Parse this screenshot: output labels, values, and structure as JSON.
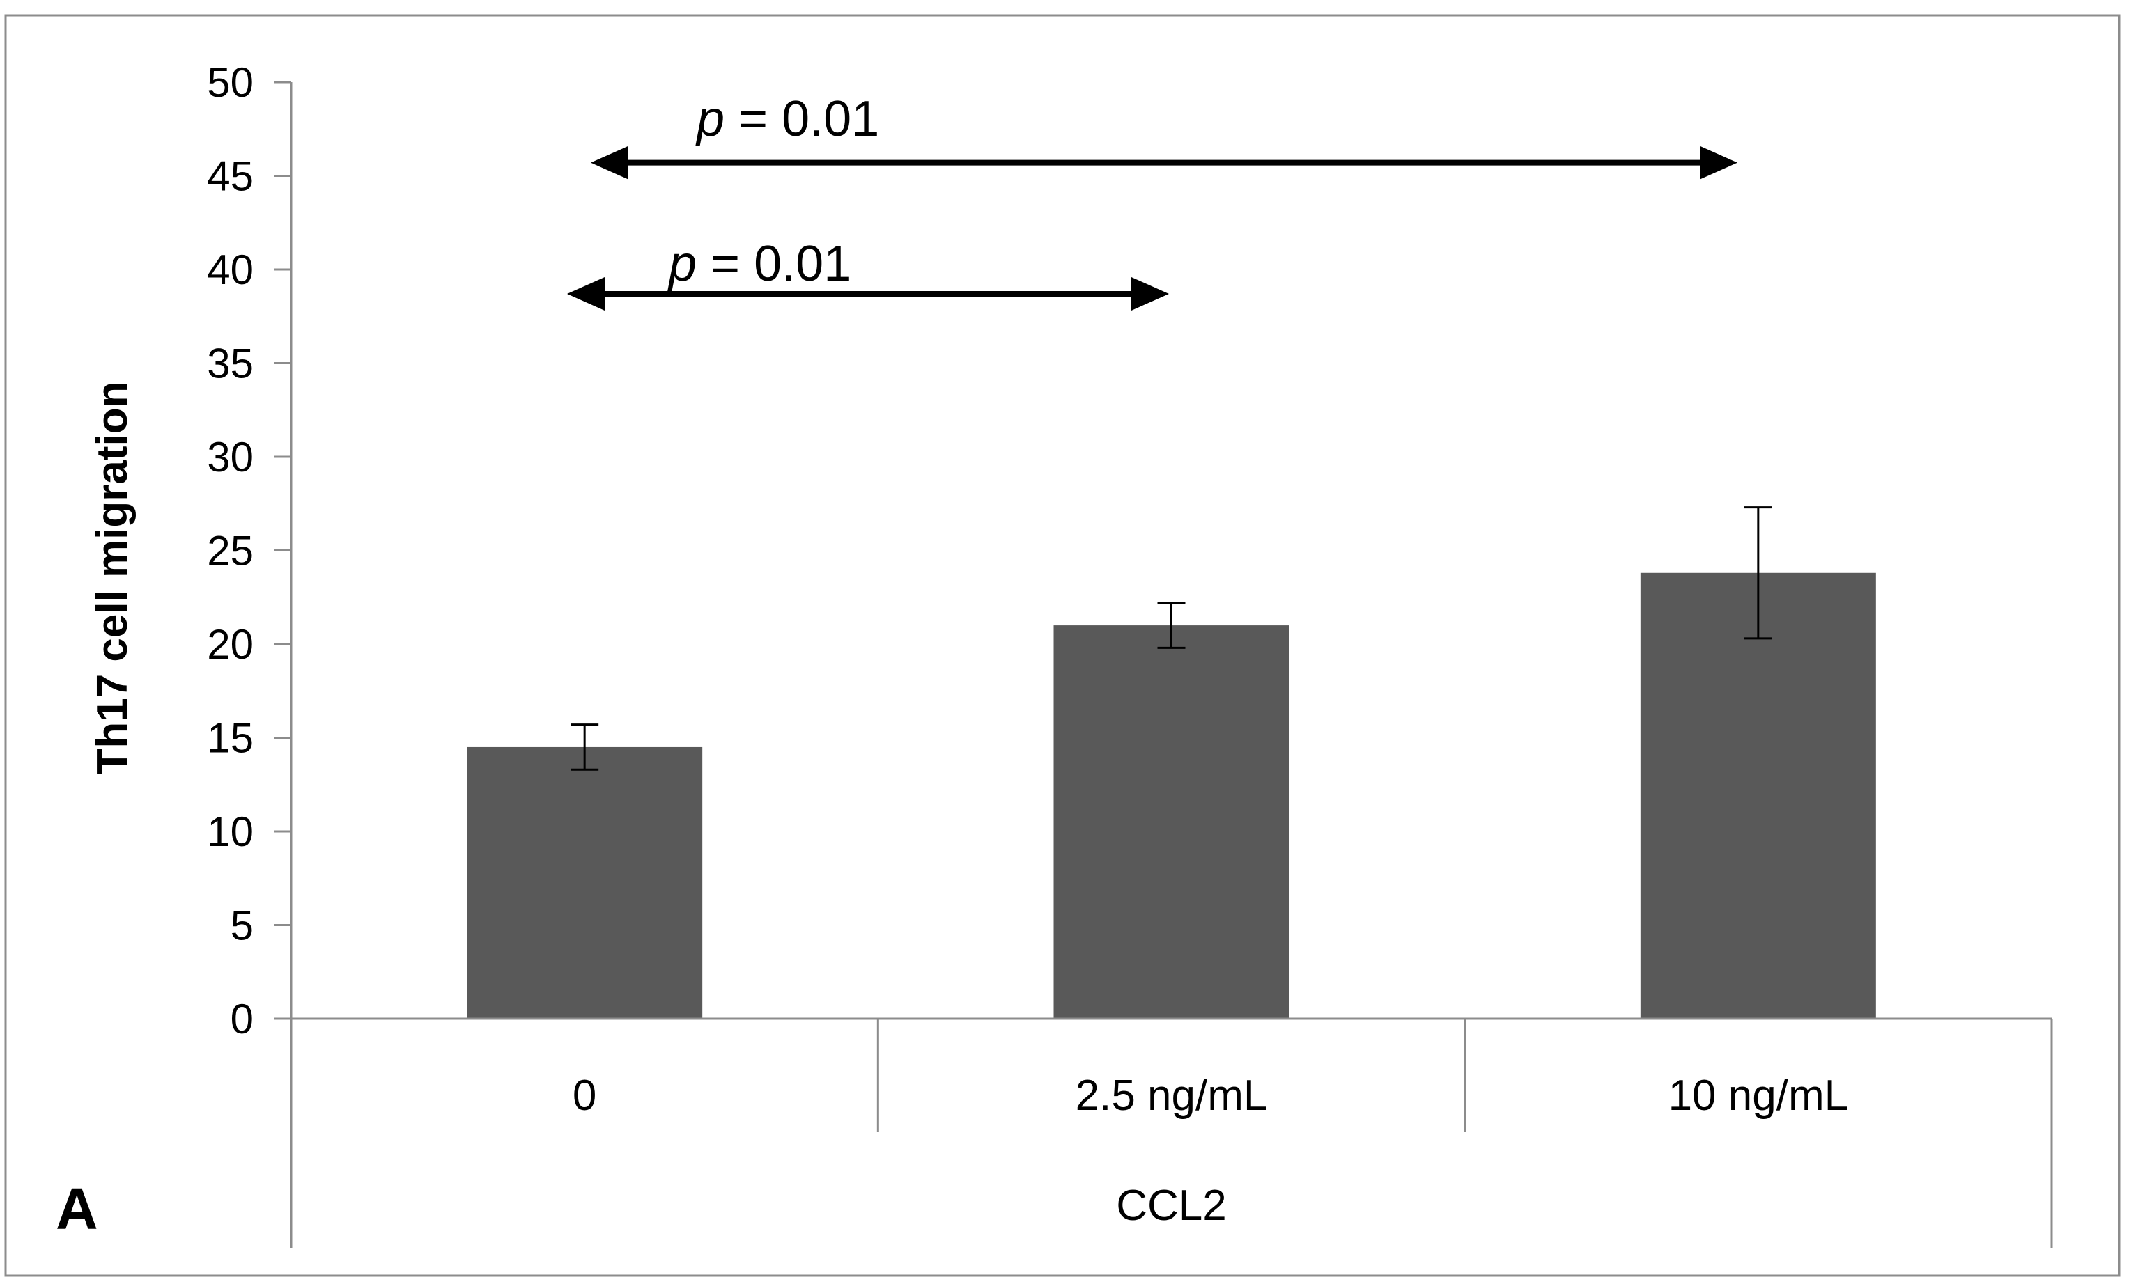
{
  "chart_data": {
    "type": "bar",
    "panel_label": "A",
    "ylabel": "Th17 cell migration",
    "ylim": [
      0,
      50
    ],
    "yticks": [
      0,
      5,
      10,
      15,
      20,
      25,
      30,
      35,
      40,
      45,
      50
    ],
    "categories": [
      "0",
      "2.5 ng/mL",
      "10 ng/mL"
    ],
    "group_label": "CCL2",
    "values": [
      14.5,
      21.0,
      23.8
    ],
    "error": [
      1.2,
      1.2,
      3.5
    ],
    "bar_color": "#595959",
    "annotations": [
      {
        "italic": "p",
        "text": " = 0.01",
        "from": "0",
        "to": "10 ng/mL",
        "y": 45.7
      },
      {
        "italic": "p",
        "text": " = 0.01",
        "from": "0",
        "to": "2.5 ng/mL",
        "y": 38.7
      }
    ]
  }
}
